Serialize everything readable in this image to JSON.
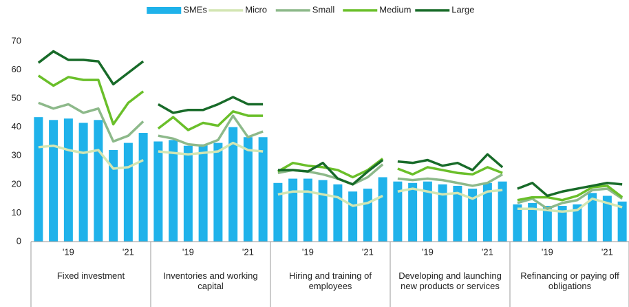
{
  "chart_data": {
    "type": "bar-line",
    "groups": [
      "Fixed investment",
      "Inventories and working capital",
      "Hiring and training of employees",
      "Developing and launching new products or services",
      "Refinancing or paying off obligations"
    ],
    "categories": [
      null,
      null,
      "'19",
      null,
      null,
      null,
      "'21",
      null,
      null,
      null,
      "'19",
      null,
      null,
      null,
      "'21",
      null,
      null,
      null,
      "'19",
      null,
      null,
      null,
      "'21",
      null,
      null,
      null,
      "'19",
      null,
      null,
      null,
      "'21",
      null,
      null,
      null,
      "'19",
      null,
      null,
      null,
      "'21",
      null
    ],
    "series": [
      {
        "name": "SMEs",
        "kind": "bar",
        "color": "#1fb2ea",
        "values": [
          43.5,
          42.5,
          43,
          41.5,
          42.5,
          32,
          34.5,
          38,
          35,
          35.5,
          33.5,
          34,
          34.5,
          40,
          36.5,
          36.5,
          20.5,
          22,
          22,
          21.5,
          20,
          17.5,
          18.5,
          22.5,
          21,
          20.5,
          21,
          20,
          19.5,
          18.5,
          20.5,
          21,
          13,
          13.5,
          12.5,
          12.5,
          13,
          17,
          16,
          14
        ]
      },
      {
        "name": "Micro",
        "kind": "line",
        "color": "#d3e6b3",
        "values": [
          33,
          33.5,
          32,
          31,
          32,
          25.5,
          26,
          28.5,
          31.5,
          31,
          30.5,
          31,
          31.5,
          34.5,
          32,
          31.5,
          16.5,
          17.5,
          17.5,
          16.5,
          15.5,
          12.5,
          13.5,
          16,
          17.5,
          18.5,
          17.5,
          16.5,
          17,
          15,
          17.5,
          18,
          11.5,
          11.5,
          11,
          10.5,
          11,
          15,
          13.5,
          12
        ]
      },
      {
        "name": "Small",
        "kind": "line",
        "color": "#8db98a",
        "values": [
          48.5,
          46.5,
          48,
          45,
          46.5,
          35,
          37,
          42,
          37,
          36,
          34,
          33.5,
          35.5,
          44,
          36.5,
          38.5,
          24,
          25,
          24.5,
          23.5,
          22,
          20,
          22.5,
          27,
          22,
          21.5,
          22,
          21.5,
          20.5,
          19.5,
          20.5,
          23.5,
          13.5,
          15,
          11.5,
          13.5,
          14.5,
          18,
          18.5,
          15
        ]
      },
      {
        "name": "Medium",
        "kind": "line",
        "color": "#6abf2a",
        "values": [
          58,
          54.5,
          57.5,
          56.5,
          56.5,
          41,
          48.5,
          52.5,
          39.5,
          43.5,
          39,
          41.5,
          40.5,
          45.5,
          44,
          44,
          24.5,
          27.5,
          26.5,
          26,
          25,
          22.5,
          25,
          29,
          25.5,
          23.5,
          26,
          25,
          24,
          23.5,
          26,
          24,
          14.5,
          15.5,
          15.5,
          14.5,
          16,
          19,
          19.5,
          15.5
        ]
      },
      {
        "name": "Large",
        "kind": "line",
        "color": "#186b29",
        "values": [
          62.5,
          66.5,
          63.5,
          63.5,
          63,
          55,
          59,
          63,
          48,
          45,
          46,
          46,
          48,
          50.5,
          48,
          48,
          25,
          25,
          24.5,
          27.5,
          22,
          20,
          24.5,
          28.5,
          28,
          27.5,
          28.5,
          26.5,
          27.5,
          25,
          30.5,
          26,
          18.5,
          20.5,
          16,
          17.5,
          18.5,
          19.5,
          20.5,
          20
        ]
      }
    ],
    "ylim": [
      0,
      70
    ],
    "yticks": [
      0,
      10,
      20,
      30,
      40,
      50,
      60,
      70
    ],
    "legend": "top"
  }
}
